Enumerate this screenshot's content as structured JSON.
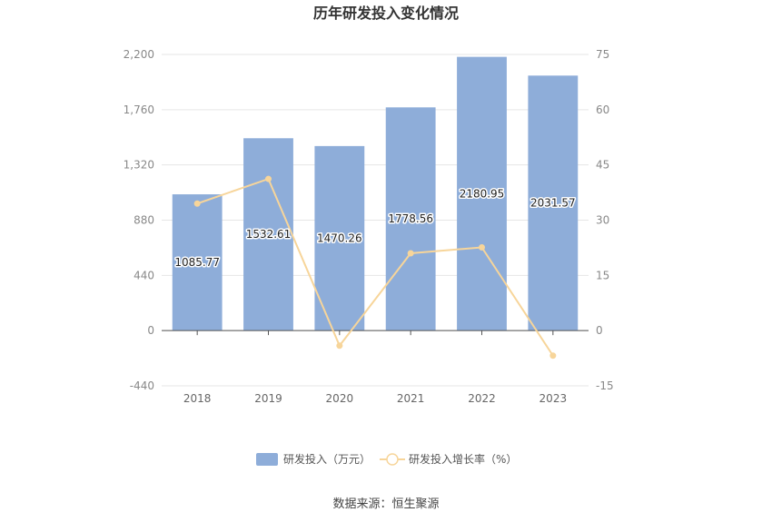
{
  "chart_data": {
    "type": "bar",
    "title": "历年研发投入变化情况",
    "categories": [
      "2018",
      "2019",
      "2020",
      "2021",
      "2022",
      "2023"
    ],
    "series": [
      {
        "name": "研发投入（万元）",
        "type": "bar",
        "axis": "left",
        "color": "#8eadd9",
        "values": [
          1085.77,
          1532.61,
          1470.26,
          1778.56,
          2180.95,
          2031.57
        ],
        "labels": [
          "1085.77",
          "1532.61",
          "1470.26",
          "1778.56",
          "2180.95",
          "2031.57"
        ]
      },
      {
        "name": "研发投入增长率（%）",
        "type": "line",
        "axis": "right",
        "color": "#f7d59a",
        "values": [
          34.5,
          41.2,
          -4.1,
          21.0,
          22.6,
          -6.8
        ]
      }
    ],
    "y_left": {
      "ticks": [
        "2,200",
        "1,760",
        "1,320",
        "880",
        "440",
        "0",
        "-440"
      ],
      "range": [
        -440,
        2200
      ]
    },
    "y_right": {
      "ticks": [
        "75",
        "60",
        "45",
        "30",
        "15",
        "0",
        "-15"
      ],
      "range": [
        -15,
        75
      ]
    },
    "grid": true,
    "legend_position": "bottom"
  },
  "source_text": "数据来源：恒生聚源"
}
